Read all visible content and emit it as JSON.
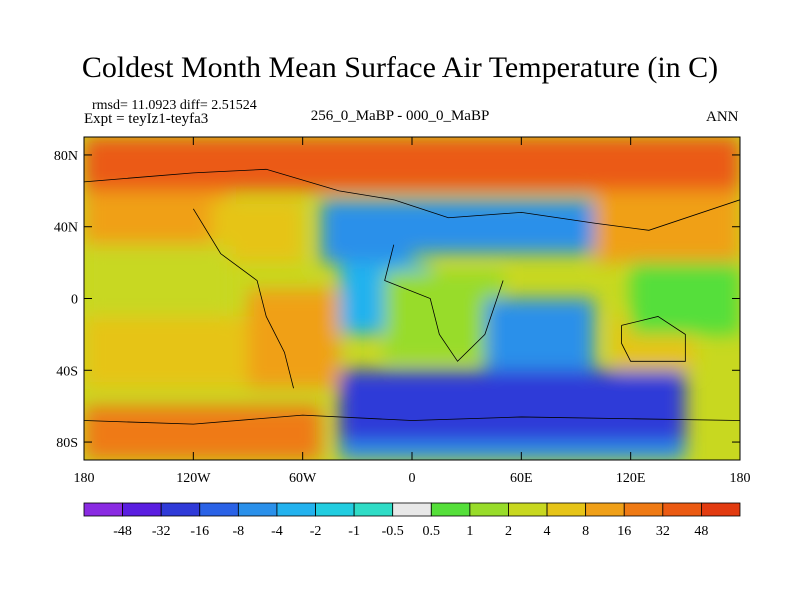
{
  "chart_data": {
    "type": "heatmap",
    "title": "Coldest Month Mean Surface Air Temperature (in C)",
    "stats": {
      "rmsd": "rmsd= 11.0923",
      "diff": "diff= 2.51524"
    },
    "experiment": "Expt = teyIz1-teyfa3",
    "center_label": "256_0_MaBP - 000_0_MaBP",
    "season": "ANN",
    "x_axis": {
      "range": [
        -180,
        180
      ],
      "ticks": [
        -180,
        -120,
        -60,
        0,
        60,
        120,
        180
      ],
      "tick_labels": [
        "180",
        "120W",
        "60W",
        "0",
        "60E",
        "120E",
        "180"
      ]
    },
    "y_axis": {
      "range": [
        -90,
        90
      ],
      "ticks": [
        80,
        40,
        0,
        -40,
        -80
      ],
      "tick_labels": [
        "80N",
        "40N",
        "0",
        "40S",
        "80S"
      ]
    },
    "colorbar": {
      "labels": [
        "-48",
        "-32",
        "-16",
        "-8",
        "-4",
        "-2",
        "-1",
        "-0.5",
        "0.5",
        "1",
        "2",
        "4",
        "8",
        "16",
        "32",
        "48"
      ],
      "colors": [
        "#8a2be2",
        "#5a1ee0",
        "#2f3ad8",
        "#2a62e6",
        "#2a90ea",
        "#23b2ee",
        "#22cde0",
        "#2fdcc6",
        "#e8e8e8",
        "#55df3a",
        "#98dc2a",
        "#c8d820",
        "#e6c418",
        "#f0a018",
        "#ef7a14",
        "#eb5a12",
        "#e23b10"
      ]
    },
    "regions": [
      {
        "name": "north-polar-band",
        "class": 15,
        "lon": [
          -180,
          180
        ],
        "lat": [
          60,
          90
        ]
      },
      {
        "name": "north-pacific",
        "class": 13,
        "lon": [
          -180,
          -100
        ],
        "lat": [
          30,
          60
        ]
      },
      {
        "name": "north-america",
        "class": 12,
        "lon": [
          -110,
          -60
        ],
        "lat": [
          20,
          55
        ]
      },
      {
        "name": "tropical-pacific",
        "class": 11,
        "lon": [
          -180,
          -100
        ],
        "lat": [
          -10,
          30
        ]
      },
      {
        "name": "south-pacific",
        "class": 12,
        "lon": [
          -180,
          -90
        ],
        "lat": [
          -50,
          -10
        ]
      },
      {
        "name": "south-america",
        "class": 13,
        "lon": [
          -90,
          -40
        ],
        "lat": [
          -50,
          5
        ]
      },
      {
        "name": "south-polar-band",
        "class": 14,
        "lon": [
          -180,
          -50
        ],
        "lat": [
          -90,
          -60
        ]
      },
      {
        "name": "north-atlantic",
        "class": 4,
        "lon": [
          -50,
          0
        ],
        "lat": [
          20,
          55
        ]
      },
      {
        "name": "tropical-atlantic",
        "class": 5,
        "lon": [
          -40,
          10
        ],
        "lat": [
          -20,
          20
        ]
      },
      {
        "name": "africa",
        "class": 10,
        "lon": [
          -15,
          50
        ],
        "lat": [
          -35,
          15
        ]
      },
      {
        "name": "europe-asia",
        "class": 4,
        "lon": [
          0,
          100
        ],
        "lat": [
          25,
          55
        ]
      },
      {
        "name": "indian-ocean",
        "class": 4,
        "lon": [
          40,
          100
        ],
        "lat": [
          -40,
          0
        ]
      },
      {
        "name": "southern-ocean",
        "class": 2,
        "lon": [
          -40,
          150
        ],
        "lat": [
          -80,
          -40
        ]
      },
      {
        "name": "antarctic-band",
        "class": 4,
        "lon": [
          -40,
          150
        ],
        "lat": [
          -90,
          -80
        ]
      },
      {
        "name": "australia",
        "class": 12,
        "lon": [
          110,
          155
        ],
        "lat": [
          -40,
          -10
        ]
      },
      {
        "name": "east-asia",
        "class": 13,
        "lon": [
          100,
          180
        ],
        "lat": [
          20,
          60
        ]
      },
      {
        "name": "west-pacific",
        "class": 9,
        "lon": [
          120,
          180
        ],
        "lat": [
          -20,
          20
        ]
      }
    ],
    "contours": [
      {
        "name": "eurasia-coast",
        "points": [
          [
            -180,
            65
          ],
          [
            -120,
            70
          ],
          [
            -80,
            72
          ],
          [
            -40,
            60
          ],
          [
            -10,
            55
          ],
          [
            20,
            45
          ],
          [
            60,
            48
          ],
          [
            100,
            42
          ],
          [
            130,
            38
          ],
          [
            180,
            55
          ]
        ]
      },
      {
        "name": "americas-coast",
        "points": [
          [
            -120,
            50
          ],
          [
            -105,
            25
          ],
          [
            -85,
            10
          ],
          [
            -80,
            -10
          ],
          [
            -70,
            -30
          ],
          [
            -65,
            -50
          ]
        ]
      },
      {
        "name": "africa-coast",
        "points": [
          [
            -10,
            30
          ],
          [
            -15,
            10
          ],
          [
            10,
            0
          ],
          [
            15,
            -20
          ],
          [
            25,
            -35
          ],
          [
            40,
            -20
          ],
          [
            50,
            10
          ]
        ]
      },
      {
        "name": "australia-coast",
        "points": [
          [
            115,
            -15
          ],
          [
            135,
            -10
          ],
          [
            150,
            -20
          ],
          [
            150,
            -35
          ],
          [
            120,
            -35
          ],
          [
            115,
            -25
          ],
          [
            115,
            -15
          ]
        ]
      },
      {
        "name": "antarctic-coast",
        "points": [
          [
            -180,
            -68
          ],
          [
            -120,
            -70
          ],
          [
            -60,
            -65
          ],
          [
            0,
            -68
          ],
          [
            60,
            -66
          ],
          [
            120,
            -67
          ],
          [
            180,
            -68
          ]
        ]
      }
    ]
  }
}
